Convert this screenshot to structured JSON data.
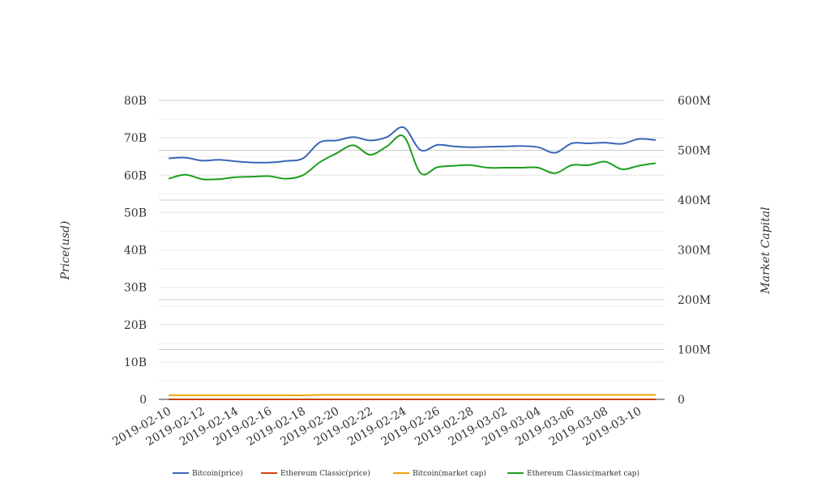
{
  "chart_data": {
    "type": "line",
    "title": "",
    "x": [
      "2019-02-10",
      "2019-02-11",
      "2019-02-12",
      "2019-02-13",
      "2019-02-14",
      "2019-02-15",
      "2019-02-16",
      "2019-02-17",
      "2019-02-18",
      "2019-02-19",
      "2019-02-20",
      "2019-02-21",
      "2019-02-22",
      "2019-02-23",
      "2019-02-24",
      "2019-02-25",
      "2019-02-26",
      "2019-02-27",
      "2019-02-28",
      "2019-03-01",
      "2019-03-02",
      "2019-03-03",
      "2019-03-04",
      "2019-03-05",
      "2019-03-06",
      "2019-03-07",
      "2019-03-08",
      "2019-03-09",
      "2019-03-10",
      "2019-03-11"
    ],
    "x_tick_labels": [
      "2019-02-10",
      "2019-02-12",
      "2019-02-14",
      "2019-02-16",
      "2019-02-18",
      "2019-02-20",
      "2019-02-22",
      "2019-02-24",
      "2019-02-26",
      "2019-02-28",
      "2019-03-02",
      "2019-03-04",
      "2019-03-06",
      "2019-03-08",
      "2019-03-10"
    ],
    "ylabel_left": "Price(usd)",
    "ylabel_right": "Market Capital",
    "ylim_left": [
      0,
      80000000000
    ],
    "ylim_right": [
      0,
      600000000
    ],
    "left_ticks": [
      {
        "value": 0,
        "label": "0"
      },
      {
        "value": 10000000000,
        "label": "10B"
      },
      {
        "value": 20000000000,
        "label": "20B"
      },
      {
        "value": 30000000000,
        "label": "30B"
      },
      {
        "value": 40000000000,
        "label": "40B"
      },
      {
        "value": 50000000000,
        "label": "50B"
      },
      {
        "value": 60000000000,
        "label": "60B"
      },
      {
        "value": 70000000000,
        "label": "70B"
      },
      {
        "value": 80000000000,
        "label": "80B"
      }
    ],
    "right_ticks": [
      {
        "value": 0,
        "label": "0"
      },
      {
        "value": 100000000,
        "label": "100M"
      },
      {
        "value": 200000000,
        "label": "200M"
      },
      {
        "value": 300000000,
        "label": "300M"
      },
      {
        "value": 400000000,
        "label": "400M"
      },
      {
        "value": 500000000,
        "label": "500M"
      },
      {
        "value": 600000000,
        "label": "600M"
      }
    ],
    "grid": true,
    "legend_position": "bottom",
    "series": [
      {
        "name": "Bitcoin(price)",
        "color": "#3a66b8",
        "axis": "left",
        "values": [
          64500000000,
          64700000000,
          63900000000,
          64100000000,
          63700000000,
          63400000000,
          63400000000,
          63800000000,
          64500000000,
          68800000000,
          69300000000,
          70200000000,
          69300000000,
          70200000000,
          72800000000,
          66700000000,
          68100000000,
          67700000000,
          67500000000,
          67600000000,
          67700000000,
          67800000000,
          67500000000,
          66000000000,
          68500000000,
          68500000000,
          68700000000,
          68400000000,
          69700000000,
          69400000000
        ]
      },
      {
        "name": "Ethereum Classic(price)",
        "color": "#cc4411",
        "axis": "left",
        "values": [
          4.3,
          4.3,
          4.2,
          4.2,
          4.2,
          4.2,
          4.1,
          4.2,
          4.3,
          4.5,
          4.6,
          4.7,
          4.5,
          4.6,
          4.8,
          4.2,
          4.3,
          4.3,
          4.3,
          4.3,
          4.3,
          4.3,
          4.3,
          4.2,
          4.3,
          4.3,
          4.3,
          4.2,
          4.3,
          4.3
        ]
      },
      {
        "name": "Bitcoin(market cap)",
        "color": "#f0a30a",
        "axis": "left",
        "values": [
          1100000000.0,
          1100000000.0,
          1100000000.0,
          1100000000.0,
          1100000000.0,
          1100000000.0,
          1100000000.0,
          1100000000.0,
          1100000000.0,
          1200000000.0,
          1200000000.0,
          1200000000.0,
          1200000000.0,
          1200000000.0,
          1200000000.0,
          1200000000.0,
          1200000000.0,
          1200000000.0,
          1200000000.0,
          1200000000.0,
          1200000000.0,
          1200000000.0,
          1200000000.0,
          1200000000.0,
          1200000000.0,
          1200000000.0,
          1200000000.0,
          1200000000.0,
          1200000000.0,
          1200000000.0
        ]
      },
      {
        "name": "Ethereum Classic(market cap)",
        "color": "#1e9e1e",
        "axis": "right",
        "values": [
          443000000,
          451000000,
          442000000,
          442000000,
          446000000,
          447000000,
          448000000,
          443000000,
          450000000,
          476000000,
          494000000,
          510000000,
          491000000,
          508000000,
          528000000,
          454000000,
          466000000,
          469000000,
          470000000,
          465000000,
          465000000,
          465000000,
          465000000,
          454000000,
          470000000,
          470000000,
          477000000,
          462000000,
          469000000,
          474000000
        ]
      }
    ]
  }
}
